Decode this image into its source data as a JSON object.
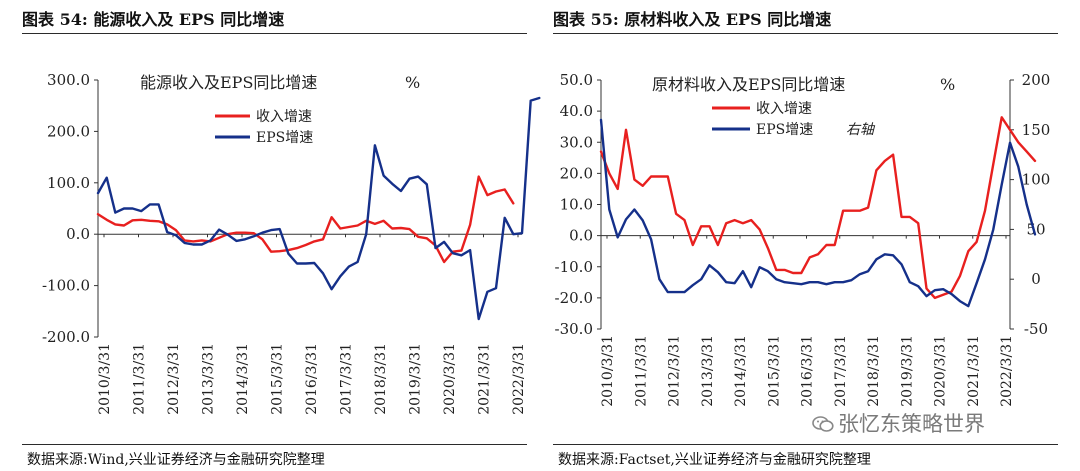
{
  "figures": [
    {
      "id": "fig54",
      "label": "图表 54:",
      "title": "能源收入及 EPS 同比增速",
      "source": "数据来源:Wind,兴业证券经济与金融研究院整理"
    },
    {
      "id": "fig55",
      "label": "图表 55:",
      "title": "原材料收入及 EPS 同比增速",
      "source": "数据来源:Factset,兴业证券经济与金融研究院整理"
    }
  ],
  "watermark": "张忆东策略世界",
  "colors": {
    "revenue": "#e8201f",
    "eps": "#15308a",
    "axis": "#333333"
  },
  "chart_data": [
    {
      "type": "line",
      "title": "能源收入及EPS同比增速",
      "unit": "%",
      "y_ticks": [
        "300.0",
        "200.0",
        "100.0",
        "0.0",
        "-100.0",
        "-200.0"
      ],
      "ylim": [
        -200,
        300
      ],
      "x_tick_labels": [
        "2010/3/31",
        "2011/3/31",
        "2012/3/31",
        "2013/3/31",
        "2014/3/31",
        "2015/3/31",
        "2016/3/31",
        "2017/3/31",
        "2018/3/31",
        "2019/3/31",
        "2020/3/31",
        "2021/3/31",
        "2022/3/31"
      ],
      "x_domain": [
        0,
        49
      ],
      "series": [
        {
          "name": "收入增速",
          "color": "#e8201f",
          "values": [
            39,
            28,
            19,
            17,
            27,
            28,
            26,
            25,
            19,
            8,
            -12,
            -14,
            -12,
            -14,
            -7,
            0,
            3,
            3,
            2,
            -10,
            -34,
            -33,
            -31,
            -27,
            -21,
            -14,
            -10,
            33,
            11,
            14,
            17,
            26,
            20,
            26,
            11,
            12,
            10,
            -5,
            -8,
            -22,
            -54,
            -34,
            -32,
            18,
            112,
            76,
            83,
            87,
            60
          ]
        },
        {
          "name": "EPS增速",
          "color": "#15308a",
          "values": [
            80,
            110,
            42,
            50,
            50,
            45,
            58,
            58,
            4,
            -2,
            -17,
            -20,
            -20,
            -12,
            9,
            -1,
            -13,
            -10,
            -4,
            3,
            8,
            10,
            -38,
            -57,
            -57,
            -56,
            -76,
            -107,
            -82,
            -63,
            -54,
            0,
            173,
            114,
            98,
            84,
            108,
            112,
            97,
            -27,
            -15,
            -37,
            -41,
            -31,
            -165,
            -112,
            -105,
            32,
            0,
            2,
            260,
            265
          ]
        }
      ],
      "legend": {
        "position": "top-center",
        "entries": [
          "收入增速",
          "EPS增速"
        ]
      }
    },
    {
      "type": "line",
      "title": "原材料收入及EPS同比增速",
      "unit": "%",
      "y_left_ticks": [
        "50.0",
        "40.0",
        "30.0",
        "20.0",
        "10.0",
        "0.0",
        "-10.0",
        "-20.0",
        "-30.0"
      ],
      "ylim_left": [
        -30,
        50
      ],
      "y_right_ticks": [
        "200",
        "150",
        "100",
        "50",
        "0",
        "-50"
      ],
      "ylim_right": [
        -50,
        200
      ],
      "x_tick_labels": [
        "2010/3/31",
        "2011/3/31",
        "2012/3/31",
        "2013/3/31",
        "2014/3/31",
        "2015/3/31",
        "2016/3/31",
        "2017/3/31",
        "2018/3/31",
        "2019/3/31",
        "2020/3/31",
        "2021/3/31",
        "2022/3/31"
      ],
      "x_domain": [
        0,
        49
      ],
      "series": [
        {
          "name": "收入增速",
          "axis": "left",
          "color": "#e8201f",
          "values": [
            27,
            20,
            15,
            34,
            18,
            16,
            19,
            19,
            19,
            7,
            5,
            -3,
            3,
            3,
            -3,
            4,
            5,
            4,
            5,
            2,
            -4,
            -11,
            -11,
            -12,
            -12,
            -7,
            -6,
            -3,
            -3,
            8,
            8,
            8,
            9,
            21,
            24,
            26,
            6,
            6,
            4,
            -17,
            -20,
            -19,
            -18,
            -13,
            -5,
            -2,
            8,
            23,
            38,
            34,
            30,
            27,
            24
          ]
        },
        {
          "name": "EPS增速 右轴",
          "axis": "right",
          "color": "#15308a",
          "values": [
            160,
            70,
            42,
            60,
            70,
            59,
            40,
            0,
            -13,
            -13,
            -13,
            -6,
            0,
            14,
            7,
            -3,
            -4,
            8,
            -8,
            12,
            8,
            0,
            -3,
            -4,
            -5,
            -3,
            -3,
            -5,
            -3,
            -3,
            -1,
            5,
            8,
            20,
            25,
            24,
            15,
            -3,
            -7,
            -17,
            -11,
            -10,
            -15,
            -22,
            -27,
            -4,
            20,
            50,
            95,
            137,
            113,
            75,
            45
          ]
        }
      ],
      "legend": {
        "position": "top-center",
        "entries": [
          "收入增速",
          "EPS增速",
          "右轴"
        ]
      }
    }
  ]
}
